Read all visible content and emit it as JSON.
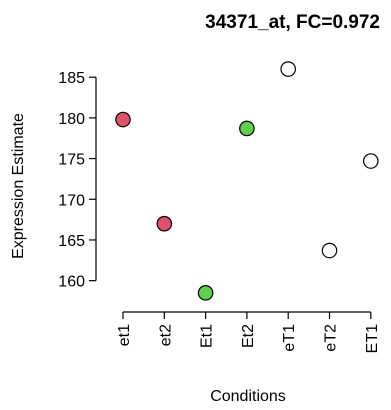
{
  "chart_data": {
    "type": "scatter",
    "title": "34371_at, FC=0.972",
    "xlabel": "Conditions",
    "ylabel": "Expression Estimate",
    "categories": [
      "et1",
      "et2",
      "Et1",
      "Et2",
      "eT1",
      "eT2",
      "ET1"
    ],
    "values": [
      179.8,
      167.0,
      158.5,
      178.7,
      186.0,
      163.7,
      174.7
    ],
    "point_colors": [
      "#DF536B",
      "#DF536B",
      "#61D04F",
      "#61D04F",
      "#FFFFFF",
      "#FFFFFF",
      "#FFFFFF"
    ],
    "yticks": [
      160,
      165,
      170,
      175,
      180,
      185
    ],
    "ylim": [
      157.5,
      186.5
    ],
    "grid": false
  }
}
